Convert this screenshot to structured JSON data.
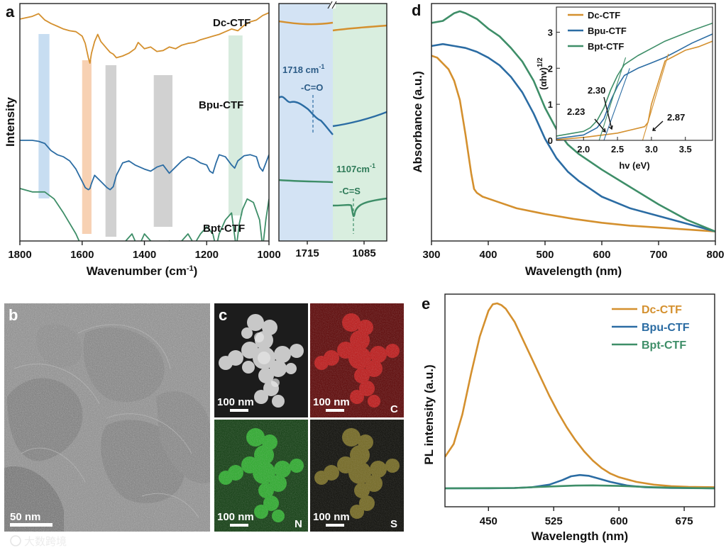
{
  "colors": {
    "dc": "#D4902E",
    "bpu": "#2B6CA3",
    "bpt": "#3E8E68",
    "band_blue": "#B9D4EE",
    "band_orange": "#F5C6A0",
    "band_gray": "#C6C6C6",
    "band_green": "#CDE6D6",
    "zoom_blue": "#D3E3F4",
    "zoom_green": "#D9EEDF"
  },
  "panel_labels": {
    "a": "a",
    "b": "b",
    "c": "c",
    "d": "d",
    "e": "e"
  },
  "chart_data": [
    {
      "id": "a",
      "type": "line",
      "title": "",
      "xlabel": "Wavenumber (cm-1)",
      "ylabel": "Intensity",
      "xlim": [
        1800,
        1000
      ],
      "xticks": [
        1800,
        1600,
        1400,
        1200,
        1000
      ],
      "series": [
        {
          "name": "Dc-CTF",
          "x": [
            1800,
            1760,
            1740,
            1720,
            1700,
            1680,
            1660,
            1640,
            1620,
            1600,
            1590,
            1580,
            1575,
            1570,
            1560,
            1550,
            1540,
            1520,
            1510,
            1500,
            1490,
            1470,
            1450,
            1430,
            1420,
            1400,
            1380,
            1360,
            1340,
            1320,
            1300,
            1280,
            1260,
            1240,
            1220,
            1200,
            1180,
            1160,
            1140,
            1120,
            1100,
            1080,
            1060,
            1040,
            1020,
            1000
          ],
          "y": [
            0.93,
            0.96,
            0.99,
            0.92,
            0.88,
            0.85,
            0.82,
            0.8,
            0.79,
            0.74,
            0.66,
            0.5,
            0.44,
            0.55,
            0.68,
            0.76,
            0.68,
            0.6,
            0.56,
            0.54,
            0.5,
            0.52,
            0.55,
            0.6,
            0.67,
            0.6,
            0.62,
            0.57,
            0.58,
            0.62,
            0.6,
            0.64,
            0.66,
            0.67,
            0.7,
            0.72,
            0.74,
            0.76,
            0.79,
            0.82,
            0.8,
            0.86,
            0.9,
            0.92,
            0.97,
            1.0
          ]
        },
        {
          "name": "Bpu-CTF",
          "x": [
            1800,
            1760,
            1740,
            1720,
            1700,
            1680,
            1660,
            1640,
            1620,
            1600,
            1590,
            1580,
            1575,
            1570,
            1560,
            1540,
            1520,
            1510,
            1500,
            1490,
            1470,
            1450,
            1430,
            1400,
            1380,
            1360,
            1340,
            1320,
            1300,
            1280,
            1260,
            1240,
            1220,
            1200,
            1190,
            1180,
            1170,
            1160,
            1140,
            1120,
            1110,
            1100,
            1080,
            1060,
            1040,
            1030,
            1020,
            1010,
            1000
          ],
          "y": [
            0.6,
            0.6,
            0.59,
            0.57,
            0.5,
            0.46,
            0.44,
            0.4,
            0.32,
            0.2,
            0.14,
            0.12,
            0.13,
            0.18,
            0.26,
            0.2,
            0.14,
            0.12,
            0.15,
            0.26,
            0.38,
            0.4,
            0.36,
            0.32,
            0.3,
            0.34,
            0.36,
            0.28,
            0.34,
            0.4,
            0.44,
            0.42,
            0.38,
            0.36,
            0.3,
            0.28,
            0.38,
            0.46,
            0.44,
            0.36,
            0.33,
            0.4,
            0.45,
            0.46,
            0.44,
            0.34,
            0.3,
            0.38,
            0.46
          ]
        },
        {
          "name": "Bpt-CTF",
          "x": [
            1800,
            1760,
            1720,
            1690,
            1660,
            1640,
            1620,
            1600,
            1580,
            1570,
            1560,
            1540,
            1520,
            1500,
            1490,
            1480,
            1460,
            1440,
            1420,
            1400,
            1380,
            1360,
            1340,
            1320,
            1300,
            1280,
            1260,
            1240,
            1220,
            1200,
            1180,
            1170,
            1160,
            1140,
            1120,
            1105,
            1095,
            1085,
            1070,
            1050,
            1030,
            1020,
            1010,
            1000
          ],
          "y": [
            0.13,
            0.12,
            0.12,
            0.1,
            0.06,
            0.03,
            0.0,
            -0.04,
            -0.08,
            -0.06,
            -0.04,
            -0.1,
            -0.12,
            -0.04,
            -0.08,
            -0.1,
            -0.02,
            0.0,
            -0.04,
            0.0,
            -0.02,
            -0.08,
            -0.06,
            -0.02,
            -0.05,
            -0.02,
            0.0,
            -0.03,
            0.0,
            0.02,
            0.0,
            -0.04,
            0.0,
            0.04,
            0.06,
            -0.04,
            0.03,
            0.07,
            0.1,
            0.09,
            0.04,
            -0.04,
            0.04,
            0.1
          ]
        }
      ],
      "highlight_bands_cm": [
        [
          1740,
          1705
        ],
        [
          1600,
          1570
        ],
        [
          1525,
          1490
        ],
        [
          1370,
          1310
        ],
        [
          1130,
          1085
        ]
      ],
      "zoom": {
        "xticks": [
          "1715",
          "1085"
        ],
        "annotations": [
          {
            "value": "1718 cm",
            "sup": "-1",
            "group": "-C=O"
          },
          {
            "value": "1107cm",
            "sup": "-1",
            "group": "-C=S"
          }
        ]
      }
    },
    {
      "id": "d",
      "type": "line",
      "xlabel": "Wavelength (nm)",
      "ylabel": "Absorbance (a.u.)",
      "xlim": [
        300,
        800
      ],
      "xticks": [
        300,
        400,
        500,
        600,
        700,
        800
      ],
      "series": [
        {
          "name": "Dc-CTF",
          "x": [
            300,
            310,
            320,
            330,
            340,
            350,
            360,
            370,
            375,
            380,
            390,
            400,
            420,
            450,
            500,
            550,
            600,
            650,
            700,
            750,
            800
          ],
          "y": [
            0.93,
            0.92,
            0.89,
            0.86,
            0.8,
            0.7,
            0.52,
            0.32,
            0.24,
            0.22,
            0.2,
            0.19,
            0.17,
            0.14,
            0.11,
            0.085,
            0.065,
            0.05,
            0.04,
            0.03,
            0.02
          ]
        },
        {
          "name": "Bpu-CTF",
          "x": [
            300,
            320,
            340,
            360,
            380,
            400,
            420,
            440,
            460,
            480,
            500,
            520,
            540,
            560,
            580,
            600,
            650,
            700,
            750,
            800
          ],
          "y": [
            0.98,
            0.99,
            0.98,
            0.97,
            0.95,
            0.92,
            0.88,
            0.82,
            0.74,
            0.63,
            0.5,
            0.4,
            0.33,
            0.28,
            0.24,
            0.2,
            0.14,
            0.1,
            0.06,
            0.02
          ]
        },
        {
          "name": "Bpt-CTF",
          "x": [
            300,
            320,
            340,
            350,
            360,
            380,
            400,
            420,
            440,
            460,
            480,
            500,
            520,
            540,
            560,
            580,
            600,
            650,
            700,
            750,
            800
          ],
          "y": [
            1.1,
            1.11,
            1.15,
            1.16,
            1.15,
            1.12,
            1.07,
            1.03,
            0.97,
            0.9,
            0.8,
            0.66,
            0.55,
            0.47,
            0.42,
            0.38,
            0.34,
            0.25,
            0.16,
            0.08,
            0.02
          ]
        }
      ],
      "inset": {
        "xlabel": "hv (eV)",
        "ylabel": "(αhv)",
        "ylabel_sup": "1/2",
        "xlim": [
          1.6,
          3.9
        ],
        "ylim": [
          0,
          3.5
        ],
        "xticks": [
          2.0,
          2.5,
          3.0,
          3.5
        ],
        "yticks": [
          0,
          1,
          2,
          3
        ],
        "legend": [
          "Dc-CTF",
          "Bpu-CTF",
          "Bpt-CTF"
        ],
        "band_gaps": [
          "2.23",
          "2.30",
          "2.87"
        ],
        "series": [
          {
            "name": "Dc-CTF",
            "x": [
              1.6,
              2.0,
              2.5,
              2.9,
              2.95,
              3.0,
              3.1,
              3.2,
              3.3,
              3.5,
              3.7,
              3.9
            ],
            "y": [
              0.02,
              0.08,
              0.2,
              0.38,
              0.5,
              1.0,
              1.6,
              2.2,
              2.3,
              2.5,
              2.6,
              2.75
            ]
          },
          {
            "name": "Bpu-CTF",
            "x": [
              1.6,
              2.0,
              2.2,
              2.3,
              2.4,
              2.5,
              2.6,
              2.8,
              3.0,
              3.2,
              3.4,
              3.6,
              3.9
            ],
            "y": [
              0.05,
              0.15,
              0.35,
              0.6,
              1.1,
              1.5,
              1.8,
              2.0,
              2.15,
              2.3,
              2.5,
              2.7,
              2.95
            ]
          },
          {
            "name": "Bpt-CTF",
            "x": [
              1.6,
              2.0,
              2.1,
              2.2,
              2.3,
              2.4,
              2.5,
              2.6,
              2.8,
              3.0,
              3.2,
              3.4,
              3.6,
              3.9
            ],
            "y": [
              0.12,
              0.25,
              0.35,
              0.55,
              0.9,
              1.4,
              1.8,
              2.1,
              2.35,
              2.55,
              2.75,
              2.9,
              3.05,
              3.25
            ]
          }
        ]
      }
    },
    {
      "id": "e",
      "type": "line",
      "xlabel": "Wavelength (nm)",
      "ylabel": "PL intensity (a.u.)",
      "xlim": [
        400,
        710
      ],
      "xticks": [
        450,
        525,
        600,
        675
      ],
      "legend": [
        "Dc-CTF",
        "Bpu-CTF",
        "Bpt-CTF"
      ],
      "series": [
        {
          "name": "Dc-CTF",
          "x": [
            400,
            410,
            420,
            430,
            440,
            450,
            455,
            460,
            465,
            470,
            480,
            490,
            500,
            510,
            520,
            530,
            540,
            550,
            560,
            570,
            580,
            590,
            600,
            620,
            640,
            660,
            680,
            710
          ],
          "y": [
            0.17,
            0.24,
            0.4,
            0.62,
            0.82,
            0.96,
            0.995,
            1.0,
            0.99,
            0.97,
            0.9,
            0.8,
            0.7,
            0.6,
            0.5,
            0.41,
            0.33,
            0.26,
            0.2,
            0.15,
            0.11,
            0.08,
            0.06,
            0.035,
            0.02,
            0.012,
            0.008,
            0.006
          ]
        },
        {
          "name": "Bpu-CTF",
          "x": [
            400,
            450,
            480,
            500,
            520,
            535,
            545,
            555,
            565,
            575,
            590,
            610,
            630,
            660,
            710
          ],
          "y": [
            0.0,
            0.0,
            0.002,
            0.006,
            0.02,
            0.045,
            0.065,
            0.072,
            0.068,
            0.055,
            0.035,
            0.015,
            0.006,
            0.002,
            0.0
          ]
        },
        {
          "name": "Bpt-CTF",
          "x": [
            400,
            480,
            520,
            550,
            570,
            600,
            640,
            680,
            710
          ],
          "y": [
            0.0,
            0.002,
            0.01,
            0.015,
            0.016,
            0.013,
            0.006,
            0.002,
            0.0
          ]
        }
      ]
    }
  ],
  "microscopy": {
    "tem_scale": "50 nm",
    "watermark": "大数跨境",
    "maps": [
      {
        "id": "haadf",
        "scale": "100 nm",
        "element": ""
      },
      {
        "id": "map-c",
        "scale": "100 nm",
        "element": "C"
      },
      {
        "id": "map-n",
        "scale": "100 nm",
        "element": "N"
      },
      {
        "id": "map-s",
        "scale": "100 nm",
        "element": "S"
      }
    ]
  }
}
